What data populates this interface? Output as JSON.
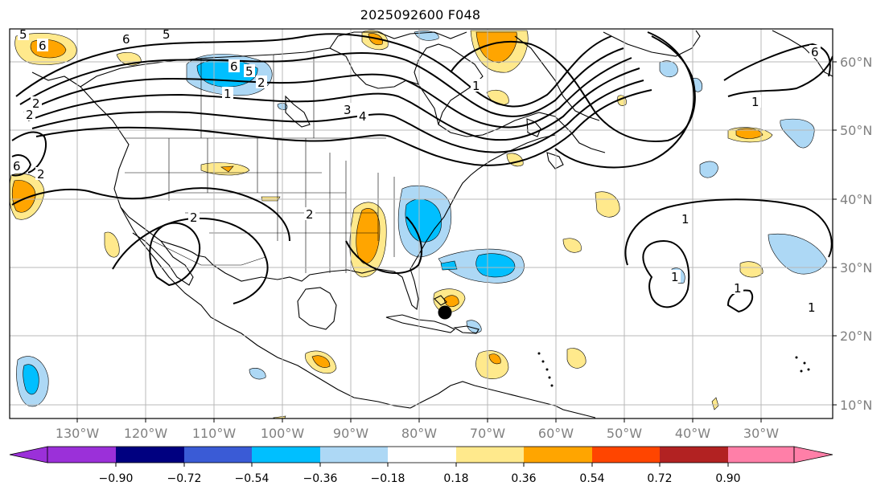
{
  "title": "2025092600 F048",
  "lon_labels": [
    "130°W",
    "120°W",
    "110°W",
    "100°W",
    "90°W",
    "80°W",
    "70°W",
    "60°W",
    "50°W",
    "40°W",
    "30°W"
  ],
  "lat_labels": [
    "60°N",
    "50°N",
    "40°N",
    "30°N",
    "20°N",
    "10°N"
  ],
  "colorbar": {
    "ticks": [
      "−0.90",
      "−0.72",
      "−0.54",
      "−0.36",
      "−0.18",
      "0.18",
      "0.36",
      "0.54",
      "0.72",
      "0.90"
    ],
    "colors": [
      "#9b30d9",
      "#000080",
      "#3a5bd6",
      "#00bfff",
      "#add8f5",
      "#ffffff",
      "#ffe98c",
      "#ffa500",
      "#ff4500",
      "#b22222",
      "#ff7fa8"
    ]
  },
  "contour_labels": [
    "6",
    "5",
    "6",
    "5",
    "2",
    "1",
    "4",
    "3",
    "2",
    "6",
    "1",
    "2",
    "5",
    "6",
    "1",
    "2",
    "2",
    "1",
    "2",
    "1",
    "1",
    "1",
    "6"
  ],
  "storm_marker": {
    "lon": -76,
    "lat": 23.5
  }
}
